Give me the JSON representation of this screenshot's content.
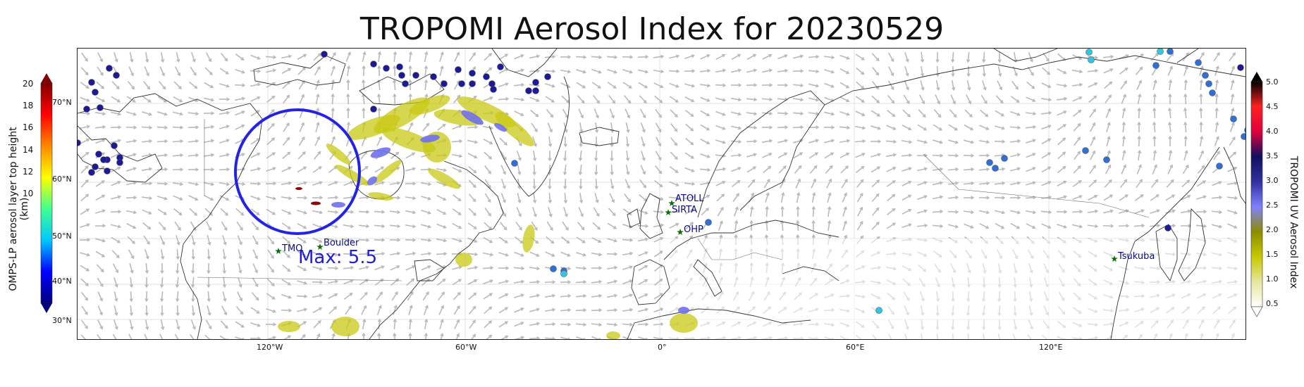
{
  "title": "TROPOMI Aerosol Index for 20230529",
  "max_label": "Max: 5.5",
  "left_colorbar": {
    "label": "OMPS-LP aerosol layer top height (km)",
    "ticks": [
      "20",
      "18",
      "16",
      "14",
      "12",
      "10"
    ],
    "range": [
      9.5,
      20.5
    ],
    "colors": [
      "#00007f",
      "#0000ff",
      "#00c8ff",
      "#40ff90",
      "#ffff00",
      "#ff8800",
      "#ff0000",
      "#7f0000"
    ]
  },
  "right_colorbar": {
    "label": "TROPOMI UV Aerosol Index",
    "ticks": [
      "5.0",
      "4.5",
      "4.0",
      "3.5",
      "3.0",
      "2.5",
      "2.0",
      "1.5",
      "1.0",
      "0.5"
    ],
    "colors": [
      "#ffffff",
      "#e6e6a0",
      "#c8c800",
      "#8c8c00",
      "#8080ff",
      "#3030a0",
      "#101060",
      "#e0003c",
      "#ff2020",
      "#000000"
    ]
  },
  "lat_labels": [
    "70°N",
    "60°N",
    "50°N",
    "40°N",
    "30°N"
  ],
  "lon_labels": [
    "120°W",
    "60°W",
    "0°",
    "60°E",
    "120°E"
  ],
  "stations": [
    {
      "name": "ATOLL"
    },
    {
      "name": "SIRTA"
    },
    {
      "name": "OHP"
    },
    {
      "name": "Boulder"
    },
    {
      "name": "TMO"
    },
    {
      "name": "Tsukuba"
    }
  ],
  "colors": {
    "circle": "#2323e6",
    "max_text": "#1f1fd9",
    "station_star": "#0a6e0a",
    "station_text": "#0a0a8c",
    "aerosol_yellow": "#c8c814",
    "aerosol_blue": "#7070ee",
    "point_navy": "#1a1a9a",
    "point_mid": "#2e70d6",
    "point_cyan": "#30c8e0"
  }
}
